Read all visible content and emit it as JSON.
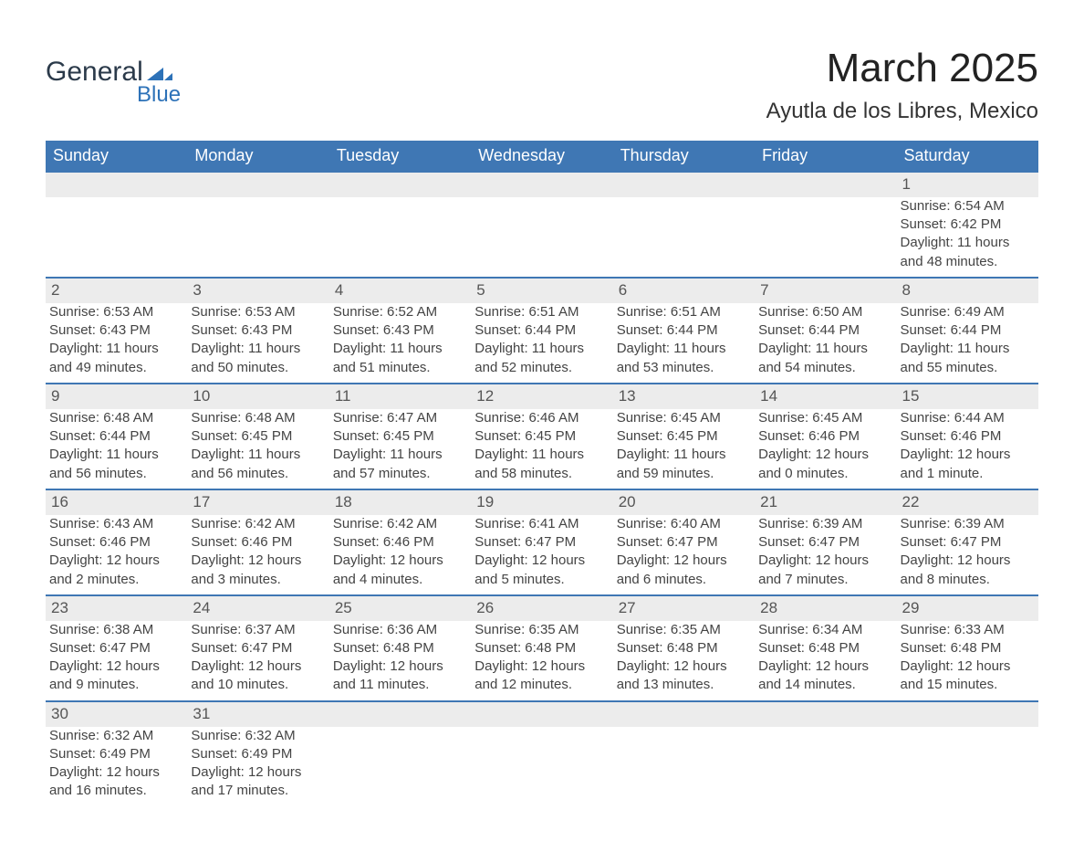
{
  "logo": {
    "line1": "General",
    "line2": "Blue",
    "shape_color": "#2d72b8"
  },
  "title": "March 2025",
  "subtitle": "Ayutla de los Libres, Mexico",
  "colors": {
    "header_bg": "#3f77b4",
    "header_text": "#ffffff",
    "row_sep": "#3f77b4",
    "daynum_bg": "#ececec",
    "text": "#444444"
  },
  "day_headers": [
    "Sunday",
    "Monday",
    "Tuesday",
    "Wednesday",
    "Thursday",
    "Friday",
    "Saturday"
  ],
  "weeks": [
    [
      null,
      null,
      null,
      null,
      null,
      null,
      {
        "n": "1",
        "sunrise": "Sunrise: 6:54 AM",
        "sunset": "Sunset: 6:42 PM",
        "daylight": "Daylight: 11 hours and 48 minutes."
      }
    ],
    [
      {
        "n": "2",
        "sunrise": "Sunrise: 6:53 AM",
        "sunset": "Sunset: 6:43 PM",
        "daylight": "Daylight: 11 hours and 49 minutes."
      },
      {
        "n": "3",
        "sunrise": "Sunrise: 6:53 AM",
        "sunset": "Sunset: 6:43 PM",
        "daylight": "Daylight: 11 hours and 50 minutes."
      },
      {
        "n": "4",
        "sunrise": "Sunrise: 6:52 AM",
        "sunset": "Sunset: 6:43 PM",
        "daylight": "Daylight: 11 hours and 51 minutes."
      },
      {
        "n": "5",
        "sunrise": "Sunrise: 6:51 AM",
        "sunset": "Sunset: 6:44 PM",
        "daylight": "Daylight: 11 hours and 52 minutes."
      },
      {
        "n": "6",
        "sunrise": "Sunrise: 6:51 AM",
        "sunset": "Sunset: 6:44 PM",
        "daylight": "Daylight: 11 hours and 53 minutes."
      },
      {
        "n": "7",
        "sunrise": "Sunrise: 6:50 AM",
        "sunset": "Sunset: 6:44 PM",
        "daylight": "Daylight: 11 hours and 54 minutes."
      },
      {
        "n": "8",
        "sunrise": "Sunrise: 6:49 AM",
        "sunset": "Sunset: 6:44 PM",
        "daylight": "Daylight: 11 hours and 55 minutes."
      }
    ],
    [
      {
        "n": "9",
        "sunrise": "Sunrise: 6:48 AM",
        "sunset": "Sunset: 6:44 PM",
        "daylight": "Daylight: 11 hours and 56 minutes."
      },
      {
        "n": "10",
        "sunrise": "Sunrise: 6:48 AM",
        "sunset": "Sunset: 6:45 PM",
        "daylight": "Daylight: 11 hours and 56 minutes."
      },
      {
        "n": "11",
        "sunrise": "Sunrise: 6:47 AM",
        "sunset": "Sunset: 6:45 PM",
        "daylight": "Daylight: 11 hours and 57 minutes."
      },
      {
        "n": "12",
        "sunrise": "Sunrise: 6:46 AM",
        "sunset": "Sunset: 6:45 PM",
        "daylight": "Daylight: 11 hours and 58 minutes."
      },
      {
        "n": "13",
        "sunrise": "Sunrise: 6:45 AM",
        "sunset": "Sunset: 6:45 PM",
        "daylight": "Daylight: 11 hours and 59 minutes."
      },
      {
        "n": "14",
        "sunrise": "Sunrise: 6:45 AM",
        "sunset": "Sunset: 6:46 PM",
        "daylight": "Daylight: 12 hours and 0 minutes."
      },
      {
        "n": "15",
        "sunrise": "Sunrise: 6:44 AM",
        "sunset": "Sunset: 6:46 PM",
        "daylight": "Daylight: 12 hours and 1 minute."
      }
    ],
    [
      {
        "n": "16",
        "sunrise": "Sunrise: 6:43 AM",
        "sunset": "Sunset: 6:46 PM",
        "daylight": "Daylight: 12 hours and 2 minutes."
      },
      {
        "n": "17",
        "sunrise": "Sunrise: 6:42 AM",
        "sunset": "Sunset: 6:46 PM",
        "daylight": "Daylight: 12 hours and 3 minutes."
      },
      {
        "n": "18",
        "sunrise": "Sunrise: 6:42 AM",
        "sunset": "Sunset: 6:46 PM",
        "daylight": "Daylight: 12 hours and 4 minutes."
      },
      {
        "n": "19",
        "sunrise": "Sunrise: 6:41 AM",
        "sunset": "Sunset: 6:47 PM",
        "daylight": "Daylight: 12 hours and 5 minutes."
      },
      {
        "n": "20",
        "sunrise": "Sunrise: 6:40 AM",
        "sunset": "Sunset: 6:47 PM",
        "daylight": "Daylight: 12 hours and 6 minutes."
      },
      {
        "n": "21",
        "sunrise": "Sunrise: 6:39 AM",
        "sunset": "Sunset: 6:47 PM",
        "daylight": "Daylight: 12 hours and 7 minutes."
      },
      {
        "n": "22",
        "sunrise": "Sunrise: 6:39 AM",
        "sunset": "Sunset: 6:47 PM",
        "daylight": "Daylight: 12 hours and 8 minutes."
      }
    ],
    [
      {
        "n": "23",
        "sunrise": "Sunrise: 6:38 AM",
        "sunset": "Sunset: 6:47 PM",
        "daylight": "Daylight: 12 hours and 9 minutes."
      },
      {
        "n": "24",
        "sunrise": "Sunrise: 6:37 AM",
        "sunset": "Sunset: 6:47 PM",
        "daylight": "Daylight: 12 hours and 10 minutes."
      },
      {
        "n": "25",
        "sunrise": "Sunrise: 6:36 AM",
        "sunset": "Sunset: 6:48 PM",
        "daylight": "Daylight: 12 hours and 11 minutes."
      },
      {
        "n": "26",
        "sunrise": "Sunrise: 6:35 AM",
        "sunset": "Sunset: 6:48 PM",
        "daylight": "Daylight: 12 hours and 12 minutes."
      },
      {
        "n": "27",
        "sunrise": "Sunrise: 6:35 AM",
        "sunset": "Sunset: 6:48 PM",
        "daylight": "Daylight: 12 hours and 13 minutes."
      },
      {
        "n": "28",
        "sunrise": "Sunrise: 6:34 AM",
        "sunset": "Sunset: 6:48 PM",
        "daylight": "Daylight: 12 hours and 14 minutes."
      },
      {
        "n": "29",
        "sunrise": "Sunrise: 6:33 AM",
        "sunset": "Sunset: 6:48 PM",
        "daylight": "Daylight: 12 hours and 15 minutes."
      }
    ],
    [
      {
        "n": "30",
        "sunrise": "Sunrise: 6:32 AM",
        "sunset": "Sunset: 6:49 PM",
        "daylight": "Daylight: 12 hours and 16 minutes."
      },
      {
        "n": "31",
        "sunrise": "Sunrise: 6:32 AM",
        "sunset": "Sunset: 6:49 PM",
        "daylight": "Daylight: 12 hours and 17 minutes."
      },
      null,
      null,
      null,
      null,
      null
    ]
  ]
}
